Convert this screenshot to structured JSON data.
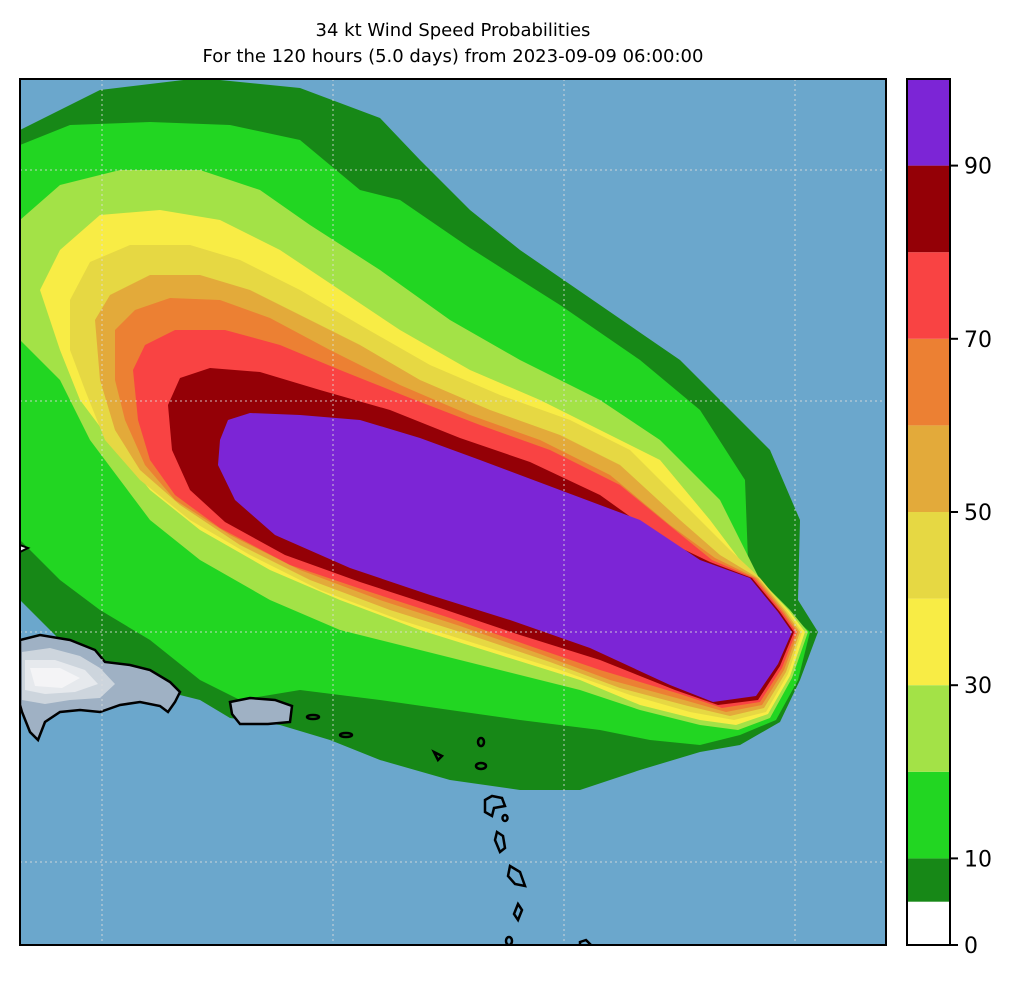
{
  "title": {
    "line1": "34 kt Wind Speed Probabilities",
    "line2": "For the 120 hours (5.0 days) from 2023-09-09 06:00:00"
  },
  "map": {
    "ocean_color": "#6ba7cc",
    "land_color": "#f4f4f6",
    "coastline_color": "#000000",
    "gridlines": true
  },
  "colorbar": {
    "ticks": [
      "0",
      "10",
      "30",
      "50",
      "70",
      "90"
    ],
    "bands": [
      {
        "min": 0,
        "max": 5,
        "color": "#ffffff"
      },
      {
        "min": 5,
        "max": 10,
        "color": "#178817"
      },
      {
        "min": 10,
        "max": 20,
        "color": "#22d622"
      },
      {
        "min": 20,
        "max": 30,
        "color": "#a3e247"
      },
      {
        "min": 30,
        "max": 40,
        "color": "#f8ec45"
      },
      {
        "min": 40,
        "max": 50,
        "color": "#e6d843"
      },
      {
        "min": 50,
        "max": 60,
        "color": "#e3aa3a"
      },
      {
        "min": 60,
        "max": 70,
        "color": "#ec8033"
      },
      {
        "min": 70,
        "max": 80,
        "color": "#f94343"
      },
      {
        "min": 80,
        "max": 90,
        "color": "#940006"
      },
      {
        "min": 90,
        "max": 100,
        "color": "#7c25d6"
      }
    ]
  }
}
